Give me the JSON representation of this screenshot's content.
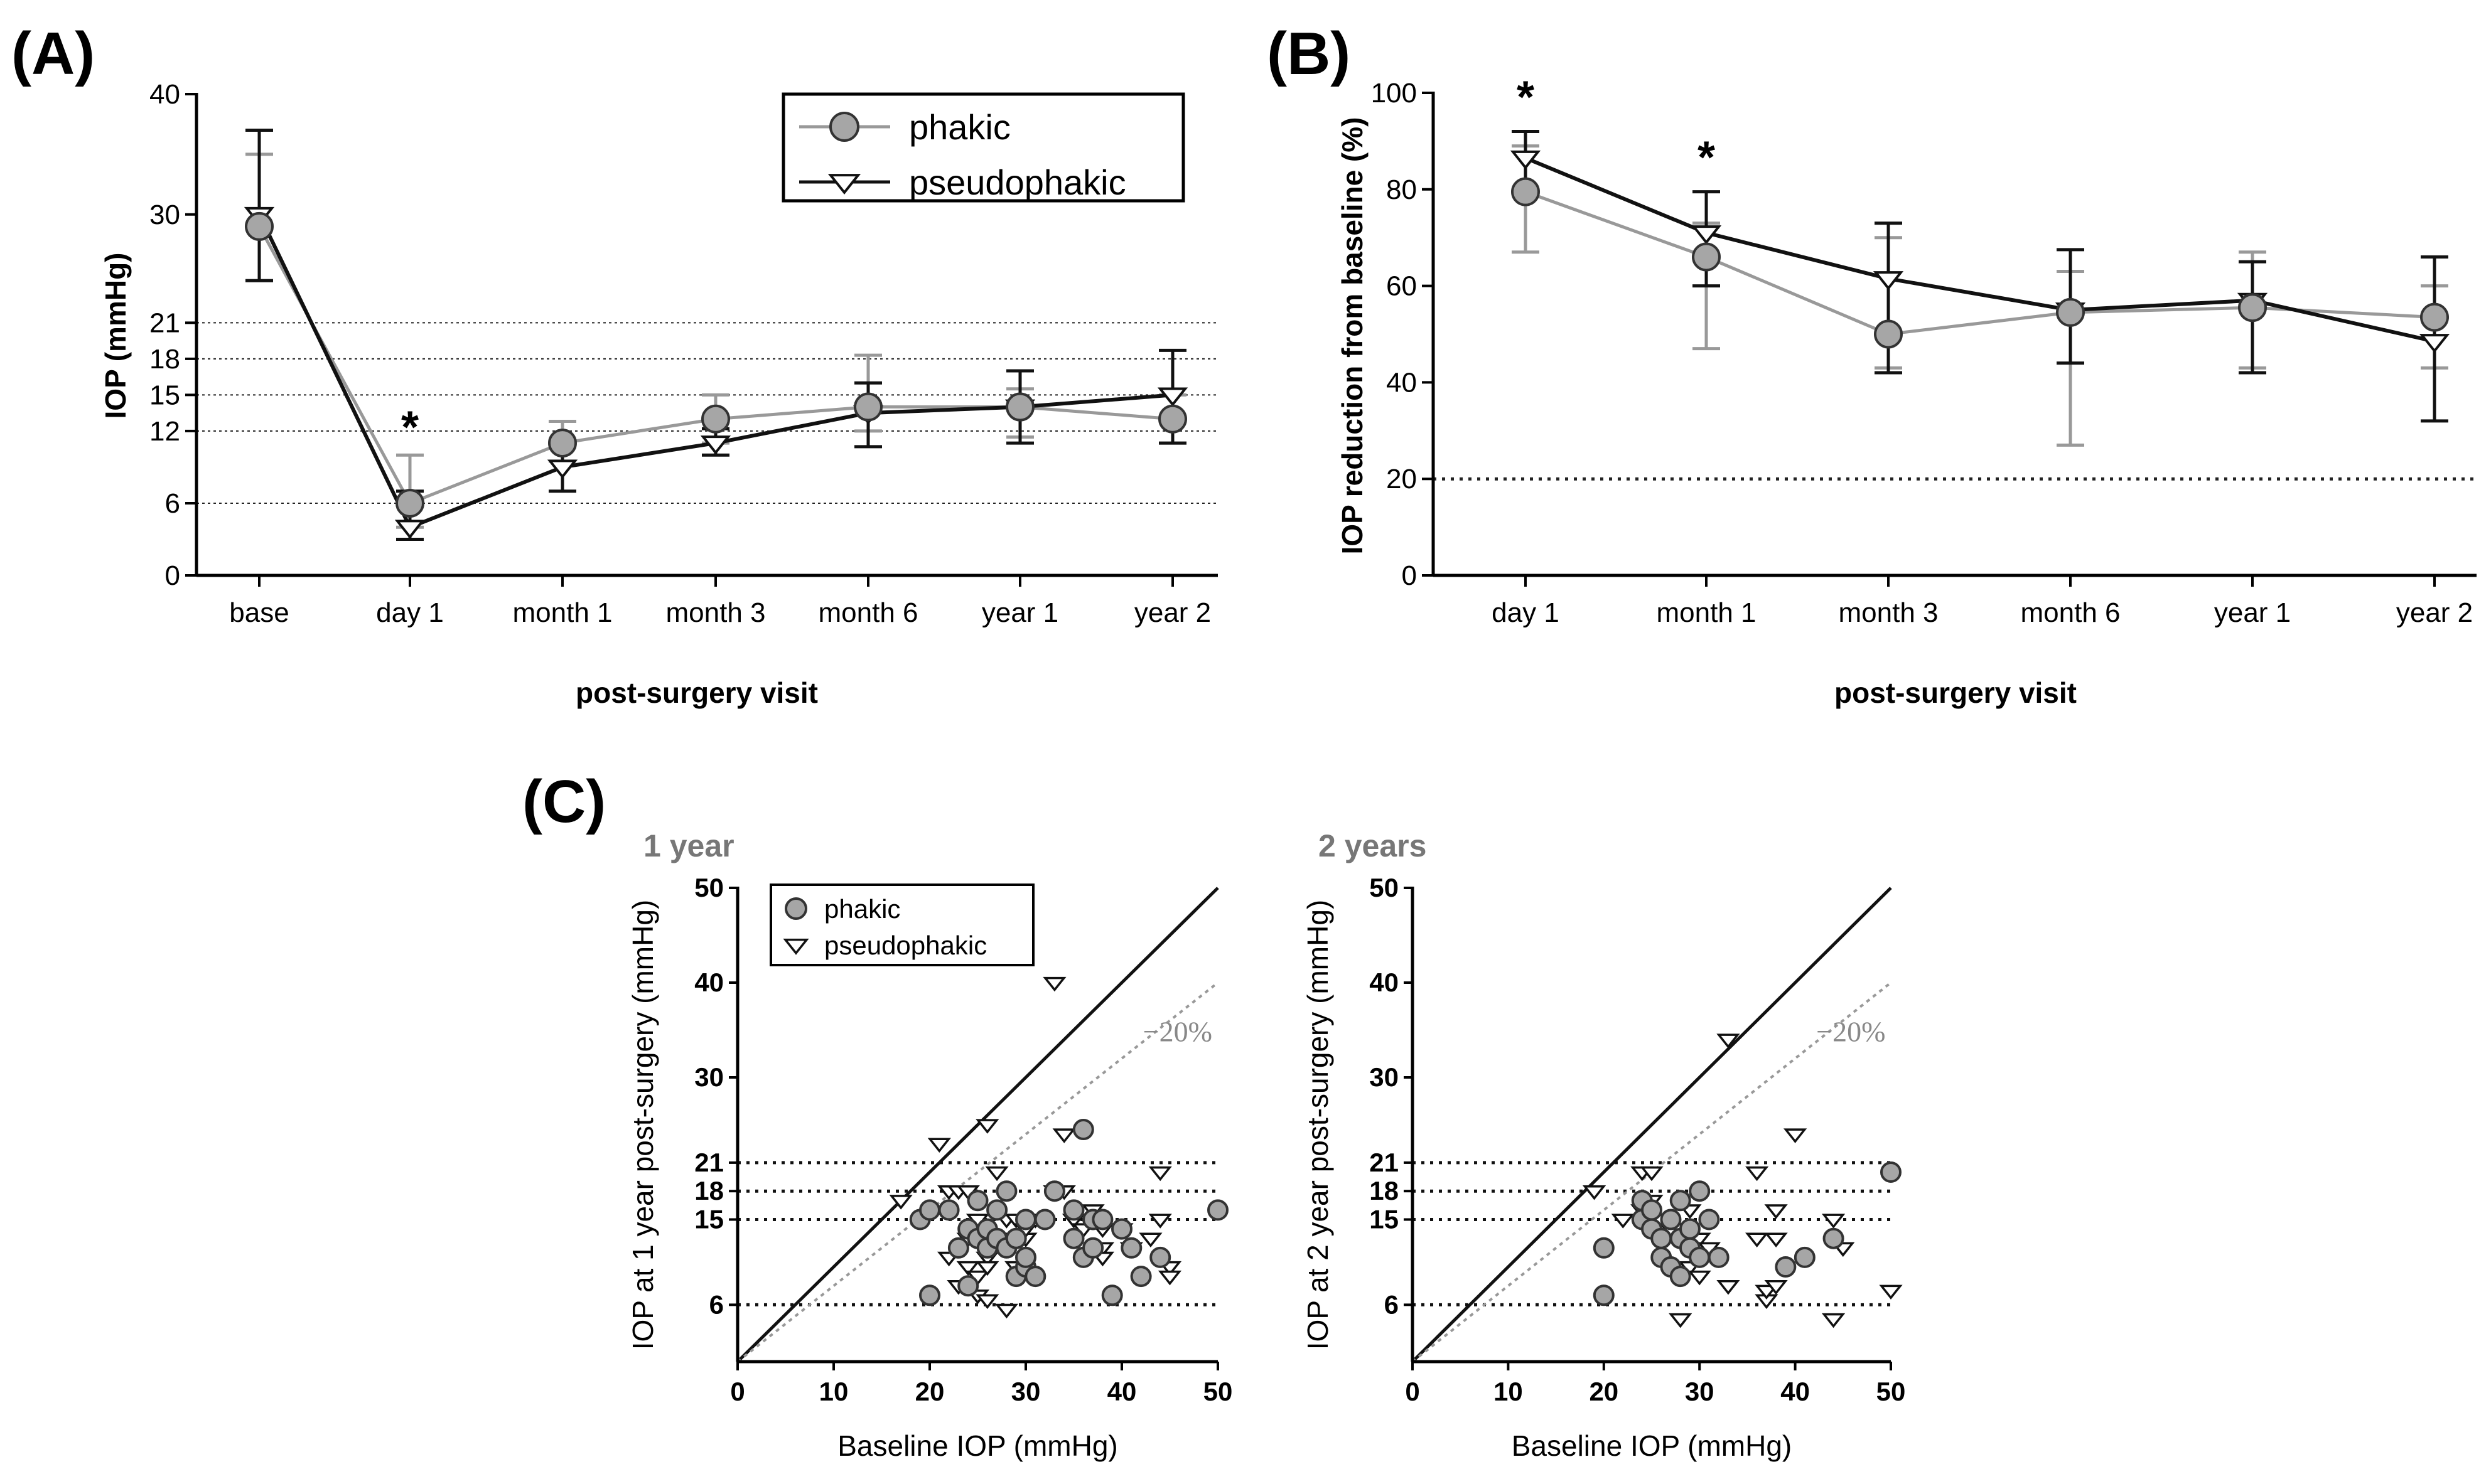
{
  "colors": {
    "phakic": "#999999",
    "pseudophakic": "#111111",
    "phakic_fill": "#a6a6a6"
  },
  "chart_data": [
    {
      "panel": "(A)",
      "type": "line",
      "ylabel": "IOP (mmHg)",
      "xlabel": "post-surgery visit",
      "categories": [
        "base",
        "day 1",
        "month 1",
        "month 3",
        "month 6",
        "year 1",
        "year 2"
      ],
      "ylim": [
        0,
        40
      ],
      "yticks": [
        "0",
        "6",
        "12",
        "15",
        "18",
        "21",
        "30",
        "40"
      ],
      "reference_lines": [
        6,
        12,
        15,
        18,
        21
      ],
      "legend": [
        "phakic",
        "pseudophakic"
      ],
      "series": [
        {
          "name": "phakic",
          "values": [
            29,
            6,
            11,
            13,
            14,
            14,
            13
          ],
          "err_low": [
            24.5,
            4,
            9.5,
            11,
            12,
            11.5,
            11
          ],
          "err_high": [
            35,
            10,
            12.8,
            15,
            18.3,
            15.5,
            15
          ]
        },
        {
          "name": "pseudophakic",
          "values": [
            30,
            4,
            9,
            11,
            13.5,
            14,
            15
          ],
          "err_low": [
            24.5,
            3,
            7,
            10,
            10.7,
            11,
            11
          ],
          "err_high": [
            37,
            7,
            10.7,
            12.2,
            16,
            17,
            18.7
          ]
        }
      ],
      "significance": [
        {
          "category": "day 1",
          "label": "*"
        }
      ]
    },
    {
      "panel": "(B)",
      "type": "line",
      "ylabel": "IOP reduction from baseline (%)",
      "xlabel": "post-surgery visit",
      "categories": [
        "day 1",
        "month 1",
        "month 3",
        "month 6",
        "year 1",
        "year 2"
      ],
      "ylim": [
        0,
        100
      ],
      "yticks": [
        "0",
        "20",
        "40",
        "60",
        "80",
        "100"
      ],
      "reference_lines": [
        20
      ],
      "series": [
        {
          "name": "phakic",
          "values": [
            79.5,
            66,
            50,
            54.5,
            55.5,
            53.5
          ],
          "err_low": [
            67,
            47,
            43,
            27,
            43,
            43
          ],
          "err_high": [
            89,
            73,
            70,
            63,
            67,
            60
          ]
        },
        {
          "name": "pseudophakic",
          "values": [
            86.5,
            71,
            61.5,
            55,
            57,
            48.5
          ],
          "err_low": [
            80,
            60,
            42,
            44,
            42,
            32
          ],
          "err_high": [
            92,
            79.5,
            73,
            67.5,
            65,
            66
          ]
        }
      ],
      "significance": [
        {
          "category": "day 1",
          "label": "*"
        },
        {
          "category": "month 1",
          "label": "*"
        }
      ]
    },
    {
      "panel": "(C)",
      "subtitle": "1 year",
      "type": "scatter",
      "xlabel": "Baseline IOP (mmHg)",
      "ylabel": "IOP at 1 year post-surgery (mmHg)",
      "xlim": [
        0,
        50
      ],
      "ylim": [
        0,
        50
      ],
      "xticks": [
        "0",
        "10",
        "20",
        "30",
        "40",
        "50"
      ],
      "yticks": [
        "6",
        "15",
        "18",
        "21",
        "30",
        "40",
        "50"
      ],
      "reference_lines": [
        6,
        15,
        18,
        21
      ],
      "identity_line": true,
      "reduction_line": {
        "label": "−20%",
        "slope": 0.8
      },
      "legend": [
        "phakic",
        "pseudophakic"
      ],
      "series": [
        {
          "name": "phakic",
          "points": [
            [
              19,
              15
            ],
            [
              20,
              16
            ],
            [
              20,
              7
            ],
            [
              22,
              16
            ],
            [
              23,
              12
            ],
            [
              24,
              8
            ],
            [
              24,
              14
            ],
            [
              25,
              17
            ],
            [
              25,
              13
            ],
            [
              26,
              12
            ],
            [
              26,
              14
            ],
            [
              27,
              16
            ],
            [
              27,
              13
            ],
            [
              28,
              18
            ],
            [
              28,
              12
            ],
            [
              29,
              13
            ],
            [
              29,
              9
            ],
            [
              30,
              15
            ],
            [
              30,
              10
            ],
            [
              30,
              11
            ],
            [
              31,
              9
            ],
            [
              32,
              15
            ],
            [
              33,
              18
            ],
            [
              35,
              16
            ],
            [
              35,
              13
            ],
            [
              36,
              24.5
            ],
            [
              36,
              11
            ],
            [
              37,
              12
            ],
            [
              37,
              15
            ],
            [
              38,
              15
            ],
            [
              39,
              7
            ],
            [
              40,
              14
            ],
            [
              41,
              12
            ],
            [
              42,
              9
            ],
            [
              44,
              11
            ],
            [
              50,
              16
            ]
          ]
        },
        {
          "name": "pseudophakic",
          "points": [
            [
              17,
              17
            ],
            [
              21,
              23
            ],
            [
              22,
              18
            ],
            [
              22,
              11
            ],
            [
              23,
              8
            ],
            [
              23,
              18
            ],
            [
              24,
              18
            ],
            [
              24,
              10
            ],
            [
              24,
              13
            ],
            [
              25,
              7
            ],
            [
              25,
              15
            ],
            [
              25,
              9
            ],
            [
              26,
              25
            ],
            [
              26,
              11
            ],
            [
              26,
              10
            ],
            [
              26,
              6.5
            ],
            [
              27,
              20
            ],
            [
              27,
              13
            ],
            [
              28,
              5.5
            ],
            [
              28,
              15
            ],
            [
              29,
              10
            ],
            [
              29,
              15
            ],
            [
              30,
              13
            ],
            [
              30,
              14
            ],
            [
              31,
              15
            ],
            [
              33,
              40
            ],
            [
              33,
              18
            ],
            [
              34,
              24
            ],
            [
              34,
              18
            ],
            [
              35,
              15
            ],
            [
              36,
              14
            ],
            [
              37,
              16
            ],
            [
              37,
              15
            ],
            [
              38,
              14
            ],
            [
              38,
              12
            ],
            [
              38,
              11
            ],
            [
              40,
              14
            ],
            [
              41,
              12
            ],
            [
              43,
              13
            ],
            [
              44,
              20
            ],
            [
              44,
              15
            ],
            [
              45,
              10
            ],
            [
              45,
              9
            ]
          ]
        }
      ]
    },
    {
      "panel": "(C)",
      "subtitle": "2 years",
      "type": "scatter",
      "xlabel": "Baseline IOP (mmHg)",
      "ylabel": "IOP at 2 year post-surgery (mmHg)",
      "xlim": [
        0,
        50
      ],
      "ylim": [
        0,
        50
      ],
      "xticks": [
        "0",
        "10",
        "20",
        "30",
        "40",
        "50"
      ],
      "yticks": [
        "6",
        "15",
        "18",
        "21",
        "30",
        "40",
        "50"
      ],
      "reference_lines": [
        6,
        15,
        18,
        21
      ],
      "identity_line": true,
      "reduction_line": {
        "label": "−20%",
        "slope": 0.8
      },
      "series": [
        {
          "name": "phakic",
          "points": [
            [
              20,
              12
            ],
            [
              20,
              7
            ],
            [
              24,
              17
            ],
            [
              24,
              15
            ],
            [
              25,
              16
            ],
            [
              25,
              14
            ],
            [
              26,
              11
            ],
            [
              26,
              13
            ],
            [
              27,
              15
            ],
            [
              27,
              10
            ],
            [
              28,
              9
            ],
            [
              28,
              13
            ],
            [
              28,
              17
            ],
            [
              29,
              12
            ],
            [
              29,
              14
            ],
            [
              30,
              18
            ],
            [
              30,
              11
            ],
            [
              31,
              15
            ],
            [
              32,
              11
            ],
            [
              39,
              10
            ],
            [
              41,
              11
            ],
            [
              44,
              13
            ],
            [
              50,
              20
            ]
          ]
        },
        {
          "name": "pseudophakic",
          "points": [
            [
              19,
              18
            ],
            [
              22,
              15
            ],
            [
              24,
              20
            ],
            [
              24,
              16
            ],
            [
              25,
              20
            ],
            [
              25,
              17
            ],
            [
              26,
              15
            ],
            [
              27,
              14
            ],
            [
              28,
              14
            ],
            [
              28,
              4.5
            ],
            [
              29,
              10
            ],
            [
              29,
              16
            ],
            [
              30,
              9
            ],
            [
              30,
              13
            ],
            [
              31,
              12
            ],
            [
              33,
              34
            ],
            [
              33,
              8
            ],
            [
              36,
              20
            ],
            [
              36,
              13
            ],
            [
              37,
              6.5
            ],
            [
              37,
              7.5
            ],
            [
              38,
              16
            ],
            [
              38,
              13
            ],
            [
              38,
              8
            ],
            [
              40,
              24
            ],
            [
              44,
              4.5
            ],
            [
              44,
              15
            ],
            [
              45,
              12
            ],
            [
              50,
              7.5
            ]
          ]
        }
      ]
    }
  ]
}
